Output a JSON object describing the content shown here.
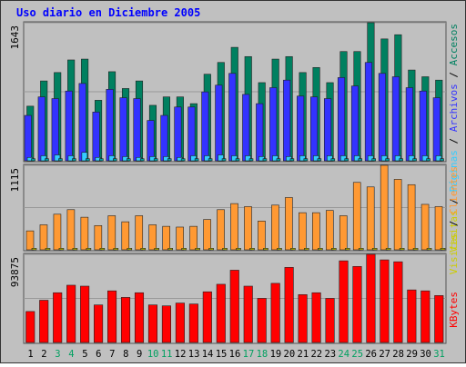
{
  "title": "Uso diario en Diciembre 2005",
  "colors": {
    "background": "#C0C0C0",
    "border": "#333333",
    "title": "#0000FF",
    "visits": "#33CCFF",
    "pages": "#3333FF",
    "hits": "#008060",
    "visits_legend": "#CCCC00",
    "clients": "#FF9933",
    "kbytes": "#FF0000",
    "weekend_label": "#00A060",
    "weekday_label": "#000000"
  },
  "chart_data": [
    {
      "type": "bar",
      "name": "hits-pages-files",
      "ymax_label": "1643",
      "ylim": [
        0,
        1643
      ],
      "legend": [
        "Visitas",
        "Páginas",
        "Archivos",
        "Accesos"
      ],
      "categories": [
        "1",
        "2",
        "3",
        "4",
        "5",
        "6",
        "7",
        "8",
        "9",
        "10",
        "11",
        "12",
        "13",
        "14",
        "15",
        "16",
        "17",
        "18",
        "19",
        "20",
        "21",
        "22",
        "23",
        "24",
        "25",
        "26",
        "27",
        "28",
        "29",
        "30",
        "31"
      ],
      "weekend": [
        3,
        4,
        10,
        11,
        17,
        18,
        24,
        25,
        31
      ],
      "series": [
        {
          "name": "Accesos",
          "values": [
            650,
            950,
            1050,
            1200,
            1210,
            720,
            1060,
            860,
            950,
            660,
            760,
            760,
            680,
            1030,
            1170,
            1350,
            1240,
            930,
            1210,
            1240,
            1050,
            1110,
            930,
            1300,
            1300,
            1643,
            1450,
            1500,
            1080,
            1000,
            960
          ]
        },
        {
          "name": "Archivos",
          "values": [
            540,
            760,
            740,
            830,
            920,
            580,
            850,
            750,
            740,
            480,
            540,
            640,
            640,
            820,
            900,
            1040,
            790,
            680,
            870,
            960,
            770,
            760,
            740,
            990,
            890,
            1170,
            1040,
            1000,
            870,
            830,
            750
          ]
        },
        {
          "name": "Visitas",
          "values": [
            40,
            60,
            70,
            60,
            100,
            40,
            60,
            50,
            40,
            50,
            50,
            40,
            60,
            60,
            70,
            60,
            60,
            50,
            60,
            50,
            60,
            60,
            60,
            60,
            60,
            60,
            60,
            60,
            60,
            60,
            60
          ]
        },
        {
          "name": "Páginas",
          "values": [
            25,
            25,
            25,
            25,
            25,
            25,
            25,
            25,
            25,
            25,
            25,
            25,
            25,
            25,
            25,
            25,
            25,
            25,
            25,
            25,
            25,
            25,
            25,
            25,
            25,
            25,
            25,
            25,
            25,
            25,
            25
          ]
        }
      ]
    },
    {
      "type": "bar",
      "name": "visits-clients",
      "ymax_label": "1115",
      "ylim": [
        0,
        1115
      ],
      "legend": [
        "Clientes",
        "Visitas"
      ],
      "series": [
        {
          "name": "Clientes",
          "values": [
            250,
            330,
            470,
            530,
            430,
            320,
            450,
            370,
            450,
            330,
            310,
            300,
            310,
            400,
            530,
            610,
            570,
            380,
            590,
            690,
            490,
            490,
            520,
            450,
            890,
            830,
            1115,
            930,
            860,
            600,
            570
          ]
        },
        {
          "name": "Visitas",
          "values": [
            20,
            20,
            20,
            20,
            20,
            20,
            20,
            20,
            20,
            20,
            20,
            20,
            20,
            20,
            20,
            20,
            20,
            20,
            20,
            20,
            20,
            20,
            20,
            20,
            20,
            20,
            20,
            20,
            20,
            20,
            20
          ]
        }
      ]
    },
    {
      "type": "bar",
      "name": "kbytes",
      "ymax_label": "93875",
      "ylim": [
        0,
        93875
      ],
      "legend": [
        "KBytes"
      ],
      "series": [
        {
          "name": "KBytes",
          "values": [
            33000,
            45000,
            53000,
            61000,
            60000,
            40000,
            55000,
            48000,
            53000,
            40000,
            39000,
            42000,
            41000,
            54000,
            62000,
            77000,
            60000,
            47000,
            63000,
            80000,
            51000,
            53000,
            47000,
            87000,
            81000,
            93875,
            88000,
            86000,
            56000,
            55000,
            50000
          ]
        }
      ]
    }
  ]
}
